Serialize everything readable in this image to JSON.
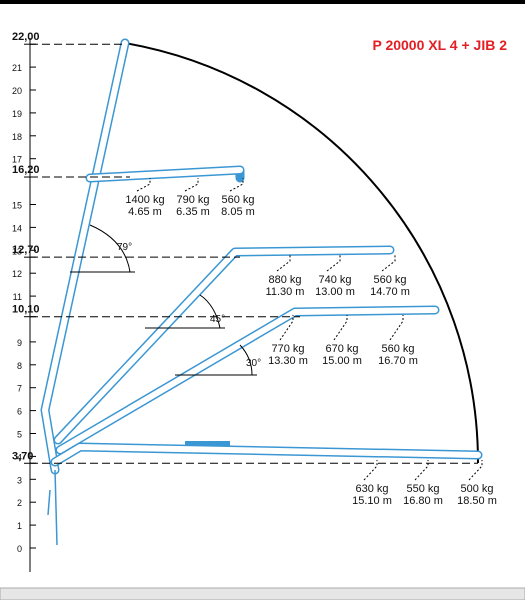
{
  "title": "P 20000 XL 4 + JIB 2",
  "height_ticks": [
    0,
    1,
    2,
    3,
    4,
    5,
    6,
    7,
    8,
    9,
    11,
    12,
    13,
    14,
    15,
    17,
    18,
    19,
    20,
    21
  ],
  "levels": [
    {
      "value": 22,
      "label": "22,00"
    },
    {
      "value": 16.2,
      "label": "16,20"
    },
    {
      "value": 12.7,
      "label": "12,70"
    },
    {
      "value": 10.1,
      "label": "10,10"
    },
    {
      "value": 3.7,
      "label": "3,70"
    }
  ],
  "angles": [
    "79°",
    "45°",
    "30°"
  ],
  "load_groups": [
    [
      {
        "kg": "1400 kg",
        "m": "4.65 m"
      },
      {
        "kg": "790 kg",
        "m": "6.35 m"
      },
      {
        "kg": "560 kg",
        "m": "8.05 m"
      }
    ],
    [
      {
        "kg": "880 kg",
        "m": "11.30 m"
      },
      {
        "kg": "740 kg",
        "m": "13.00 m"
      },
      {
        "kg": "560 kg",
        "m": "14.70 m"
      }
    ],
    [
      {
        "kg": "770 kg",
        "m": "13.30 m"
      },
      {
        "kg": "670 kg",
        "m": "15.00 m"
      },
      {
        "kg": "560 kg",
        "m": "16.70 m"
      }
    ],
    [
      {
        "kg": "630 kg",
        "m": "15.10 m"
      },
      {
        "kg": "550 kg",
        "m": "16.80 m"
      },
      {
        "kg": "500 kg",
        "m": "18.50 m"
      }
    ]
  ]
}
